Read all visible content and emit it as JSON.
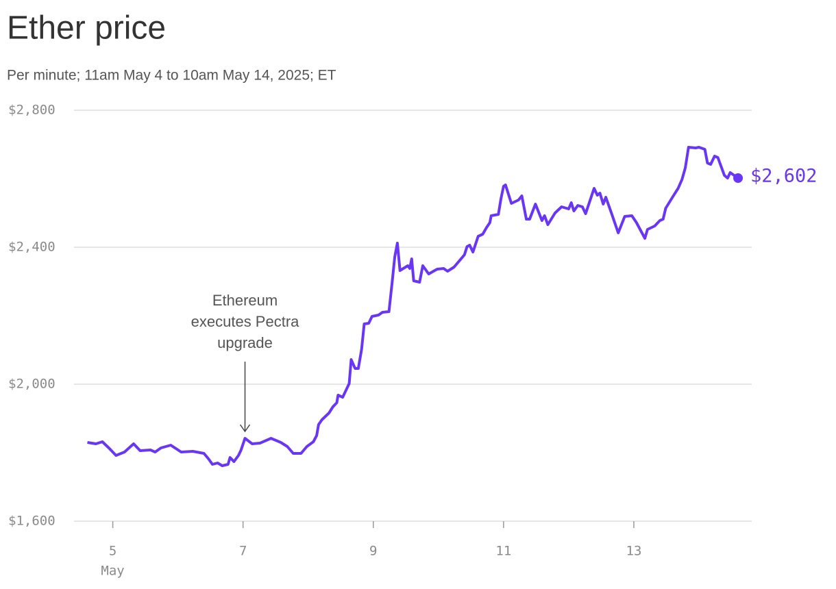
{
  "chart_data": {
    "type": "line",
    "title": "Ether price",
    "subtitle": "Per minute; 11am May 4 to 10am May 14, 2025; ET",
    "x_month_label": "May",
    "annotation": {
      "text": [
        "Ethereum",
        "executes Pectra",
        "upgrade"
      ],
      "x": 7.03,
      "y": 1842
    },
    "end_label": "$2,602",
    "color": "#6936f5",
    "grid": true,
    "xlim": [
      4.51,
      14.81
    ],
    "ylim": [
      1600,
      2800
    ],
    "xticks": [
      5,
      7,
      9,
      11,
      13
    ],
    "yticks": [
      {
        "value": 1600,
        "label": "$1,600"
      },
      {
        "value": 2000,
        "label": "$2,000"
      },
      {
        "value": 2400,
        "label": "$2,400"
      },
      {
        "value": 2800,
        "label": "$2,800"
      }
    ],
    "x": [
      4.61,
      4.74,
      4.84,
      4.95,
      5.05,
      5.18,
      5.32,
      5.42,
      5.58,
      5.65,
      5.74,
      5.89,
      6.05,
      6.23,
      6.4,
      6.47,
      6.53,
      6.61,
      6.68,
      6.77,
      6.8,
      6.86,
      6.93,
      6.97,
      7.03,
      7.14,
      7.26,
      7.43,
      7.58,
      7.68,
      7.77,
      7.89,
      7.98,
      8.08,
      8.13,
      8.16,
      8.21,
      8.32,
      8.38,
      8.44,
      8.46,
      8.53,
      8.63,
      8.66,
      8.72,
      8.77,
      8.82,
      8.86,
      8.93,
      8.98,
      9.08,
      9.14,
      9.24,
      9.29,
      9.33,
      9.37,
      9.41,
      9.53,
      9.56,
      9.59,
      9.62,
      9.71,
      9.76,
      9.85,
      9.98,
      10.08,
      10.14,
      10.24,
      10.4,
      10.44,
      10.48,
      10.53,
      10.61,
      10.68,
      10.74,
      10.79,
      10.81,
      10.92,
      10.96,
      11.0,
      11.03,
      11.12,
      11.23,
      11.28,
      11.35,
      11.4,
      11.49,
      11.59,
      11.63,
      11.68,
      11.79,
      11.89,
      12.0,
      12.04,
      12.08,
      12.14,
      12.21,
      12.26,
      12.39,
      12.44,
      12.48,
      12.53,
      12.57,
      12.66,
      12.76,
      12.86,
      12.97,
      13.04,
      13.17,
      13.21,
      13.32,
      13.4,
      13.45,
      13.49,
      13.6,
      13.68,
      13.74,
      13.79,
      13.84,
      13.95,
      14.0,
      14.09,
      14.13,
      14.18,
      14.24,
      14.29,
      14.39,
      14.44,
      14.48,
      14.6
    ],
    "values": [
      1830,
      1826,
      1832,
      1812,
      1792,
      1802,
      1826,
      1806,
      1808,
      1802,
      1814,
      1822,
      1802,
      1804,
      1798,
      1782,
      1766,
      1770,
      1762,
      1766,
      1786,
      1774,
      1792,
      1808,
      1842,
      1826,
      1828,
      1842,
      1830,
      1818,
      1798,
      1798,
      1818,
      1832,
      1850,
      1882,
      1896,
      1916,
      1934,
      1946,
      1968,
      1962,
      2002,
      2072,
      2046,
      2046,
      2102,
      2176,
      2178,
      2198,
      2202,
      2210,
      2212,
      2298,
      2372,
      2412,
      2332,
      2346,
      2338,
      2366,
      2302,
      2298,
      2346,
      2322,
      2336,
      2338,
      2330,
      2342,
      2378,
      2402,
      2406,
      2386,
      2432,
      2438,
      2458,
      2472,
      2492,
      2496,
      2542,
      2578,
      2582,
      2528,
      2538,
      2550,
      2482,
      2482,
      2526,
      2478,
      2492,
      2466,
      2500,
      2518,
      2512,
      2530,
      2506,
      2522,
      2518,
      2498,
      2572,
      2552,
      2558,
      2526,
      2546,
      2498,
      2442,
      2490,
      2492,
      2472,
      2426,
      2452,
      2462,
      2478,
      2482,
      2514,
      2548,
      2572,
      2598,
      2632,
      2692,
      2690,
      2692,
      2686,
      2646,
      2642,
      2666,
      2662,
      2610,
      2602,
      2618,
      2602
    ]
  }
}
